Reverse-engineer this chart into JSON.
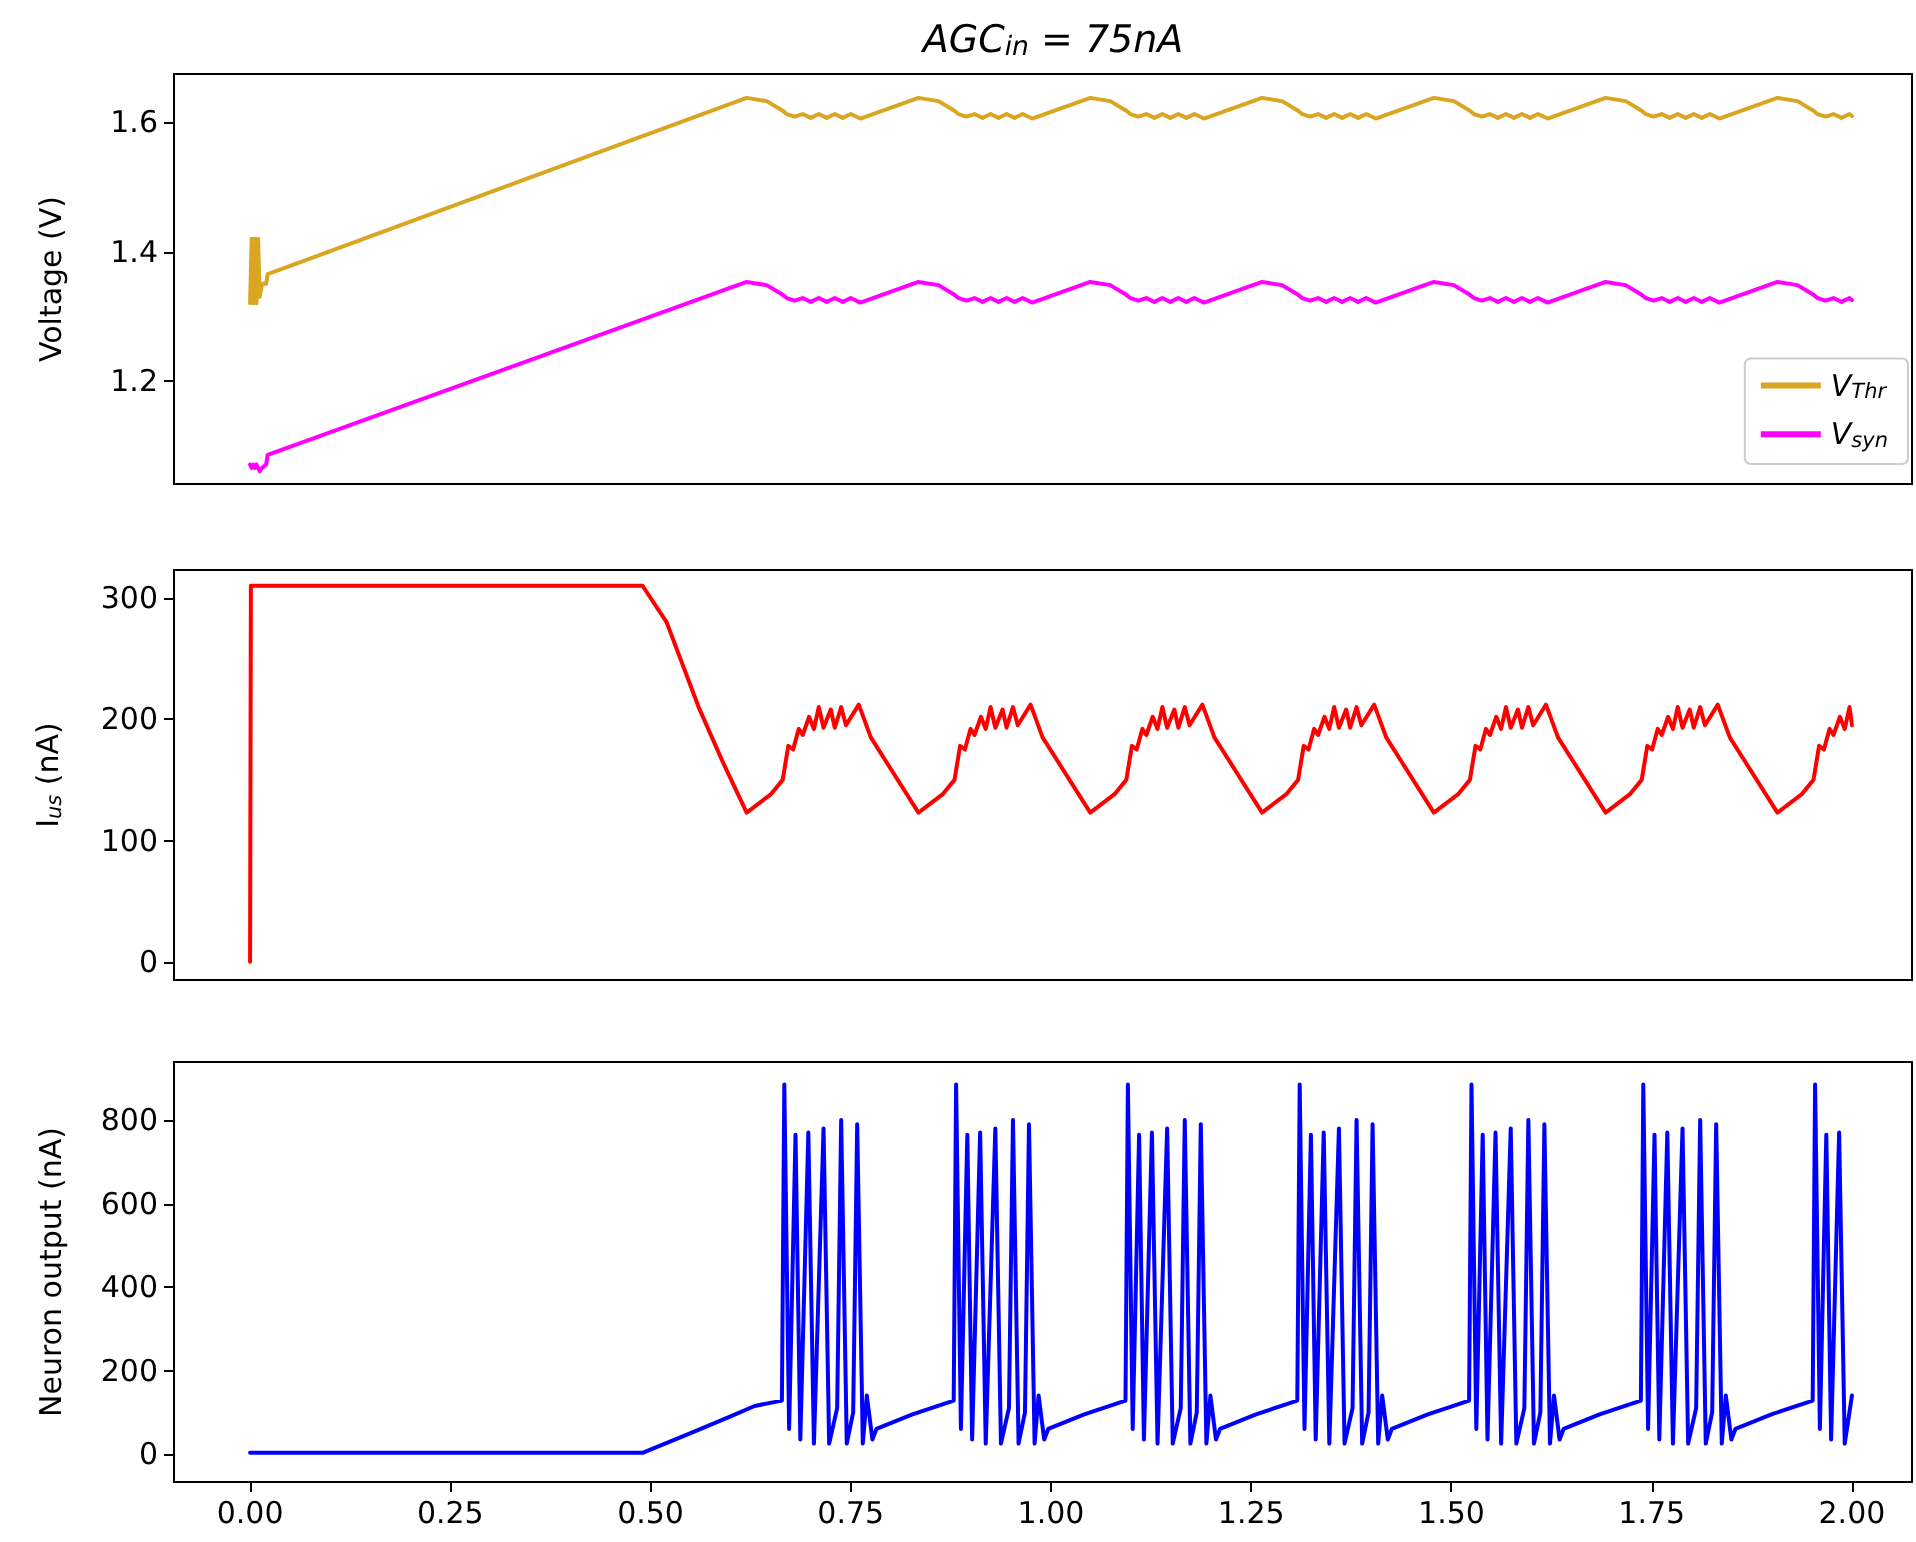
{
  "chart_data": [
    {
      "type": "line",
      "title": "AGC$_{in}$ = 75nA",
      "ylabel": "Voltage (V)",
      "legend": "bottom right",
      "tick_labels": "y",
      "xlim": [
        -0.095,
        2.075
      ],
      "ylim": [
        1.04,
        1.675
      ],
      "yticks": [
        1.2,
        1.4,
        1.6
      ],
      "x": [
        0,
        0.002,
        0.004,
        0.006,
        0.008,
        0.01,
        0.012,
        0.015,
        0.02,
        0.022,
        0.62,
        0.645,
        0.665,
        0.67,
        0.68,
        0.69,
        0.7,
        0.71,
        0.72,
        0.73,
        0.74,
        0.75,
        0.762,
        0.8345,
        0.8595,
        0.8795,
        0.8845,
        0.8945,
        0.9045,
        0.9145,
        0.9245,
        0.9345,
        0.9445,
        0.9545,
        0.9645,
        0.9765,
        1.049,
        1.074,
        1.094,
        1.099,
        1.109,
        1.119,
        1.129,
        1.139,
        1.149,
        1.159,
        1.169,
        1.179,
        1.191,
        1.2635,
        1.2885,
        1.3085,
        1.3135,
        1.3235,
        1.3335,
        1.3435,
        1.3535,
        1.3635,
        1.3735,
        1.3835,
        1.3935,
        1.4055,
        1.478,
        1.503,
        1.523,
        1.528,
        1.538,
        1.548,
        1.558,
        1.568,
        1.578,
        1.588,
        1.598,
        1.608,
        1.62,
        1.6925,
        1.7175,
        1.7375,
        1.7425,
        1.7525,
        1.7625,
        1.7725,
        1.7825,
        1.7925,
        1.8025,
        1.8125,
        1.8225,
        1.8345,
        1.907,
        1.932,
        1.952,
        1.957,
        1.967,
        1.977,
        1.987,
        1.997,
        2.0
      ],
      "series": [
        {
          "name": "V$_{Thr}$",
          "color": "#daa520",
          "values": [
            1.32,
            1.42,
            1.32,
            1.42,
            1.32,
            1.42,
            1.33,
            1.35,
            1.35,
            1.365,
            1.638,
            1.633,
            1.618,
            1.613,
            1.609,
            1.613,
            1.607,
            1.613,
            1.607,
            1.613,
            1.607,
            1.613,
            1.606,
            1.638,
            1.633,
            1.618,
            1.613,
            1.609,
            1.613,
            1.607,
            1.613,
            1.607,
            1.613,
            1.607,
            1.613,
            1.606,
            1.638,
            1.633,
            1.618,
            1.613,
            1.609,
            1.613,
            1.607,
            1.613,
            1.607,
            1.613,
            1.607,
            1.613,
            1.606,
            1.638,
            1.633,
            1.618,
            1.613,
            1.609,
            1.613,
            1.607,
            1.613,
            1.607,
            1.613,
            1.607,
            1.613,
            1.606,
            1.638,
            1.633,
            1.618,
            1.613,
            1.609,
            1.613,
            1.607,
            1.613,
            1.607,
            1.613,
            1.607,
            1.613,
            1.606,
            1.638,
            1.633,
            1.618,
            1.613,
            1.609,
            1.613,
            1.607,
            1.613,
            1.607,
            1.613,
            1.607,
            1.613,
            1.606,
            1.638,
            1.633,
            1.618,
            1.613,
            1.609,
            1.613,
            1.607,
            1.613,
            1.61
          ]
        },
        {
          "name": "V$_{syn}$",
          "color": "#ff00ff",
          "values": [
            1.07,
            1.065,
            1.07,
            1.065,
            1.07,
            1.065,
            1.06,
            1.065,
            1.07,
            1.085,
            1.353,
            1.348,
            1.333,
            1.328,
            1.324,
            1.328,
            1.322,
            1.328,
            1.322,
            1.328,
            1.322,
            1.328,
            1.321,
            1.353,
            1.348,
            1.333,
            1.328,
            1.324,
            1.328,
            1.322,
            1.328,
            1.322,
            1.328,
            1.322,
            1.328,
            1.321,
            1.353,
            1.348,
            1.333,
            1.328,
            1.324,
            1.328,
            1.322,
            1.328,
            1.322,
            1.328,
            1.322,
            1.328,
            1.321,
            1.353,
            1.348,
            1.333,
            1.328,
            1.324,
            1.328,
            1.322,
            1.328,
            1.322,
            1.328,
            1.322,
            1.328,
            1.321,
            1.353,
            1.348,
            1.333,
            1.328,
            1.324,
            1.328,
            1.322,
            1.328,
            1.322,
            1.328,
            1.322,
            1.328,
            1.321,
            1.353,
            1.348,
            1.333,
            1.328,
            1.324,
            1.328,
            1.322,
            1.328,
            1.322,
            1.328,
            1.322,
            1.328,
            1.321,
            1.353,
            1.348,
            1.333,
            1.328,
            1.324,
            1.328,
            1.322,
            1.328,
            1.325
          ]
        }
      ]
    },
    {
      "type": "line",
      "ylabel": "I$_{us}$ (nA)",
      "tick_labels": "y",
      "xlim": [
        -0.095,
        2.075
      ],
      "ylim": [
        -15,
        323
      ],
      "yticks": [
        0,
        100,
        200,
        300
      ],
      "x": [
        0,
        0.001,
        0.49,
        0.52,
        0.56,
        0.59,
        0.62,
        0.65,
        0.665,
        0.672,
        0.678,
        0.685,
        0.69,
        0.698,
        0.704,
        0.71,
        0.716,
        0.725,
        0.73,
        0.738,
        0.744,
        0.76,
        0.775,
        0.8345,
        0.8645,
        0.8795,
        0.8865,
        0.8925,
        0.8995,
        0.9045,
        0.9125,
        0.9185,
        0.9245,
        0.9305,
        0.9395,
        0.9445,
        0.9525,
        0.9585,
        0.9745,
        0.9895,
        1.049,
        1.079,
        1.094,
        1.101,
        1.107,
        1.114,
        1.119,
        1.127,
        1.133,
        1.139,
        1.145,
        1.154,
        1.159,
        1.167,
        1.173,
        1.189,
        1.204,
        1.2635,
        1.2935,
        1.3085,
        1.3155,
        1.3215,
        1.3285,
        1.3335,
        1.3415,
        1.3475,
        1.3535,
        1.3595,
        1.3685,
        1.3735,
        1.3815,
        1.3875,
        1.4035,
        1.4185,
        1.478,
        1.508,
        1.523,
        1.53,
        1.536,
        1.543,
        1.548,
        1.556,
        1.562,
        1.568,
        1.574,
        1.583,
        1.588,
        1.596,
        1.602,
        1.618,
        1.633,
        1.6925,
        1.7225,
        1.7375,
        1.7445,
        1.7505,
        1.7575,
        1.7625,
        1.7705,
        1.7765,
        1.7825,
        1.7885,
        1.7975,
        1.8025,
        1.8105,
        1.8165,
        1.8325,
        1.8475,
        1.907,
        1.937,
        1.952,
        1.959,
        1.965,
        1.972,
        1.977,
        1.985,
        1.991,
        1.997,
        2.0
      ],
      "series": [
        {
          "color": "#ff0000",
          "values": [
            0,
            310,
            310,
            280,
            210,
            165,
            123,
            138,
            150,
            178,
            175,
            192,
            187,
            202,
            192,
            210,
            193,
            208,
            193,
            210,
            195,
            212,
            185,
            123,
            138,
            150,
            178,
            175,
            192,
            187,
            202,
            192,
            210,
            193,
            208,
            193,
            210,
            195,
            212,
            185,
            123,
            138,
            150,
            178,
            175,
            192,
            187,
            202,
            192,
            210,
            193,
            208,
            193,
            210,
            195,
            212,
            185,
            123,
            138,
            150,
            178,
            175,
            192,
            187,
            202,
            192,
            210,
            193,
            208,
            193,
            210,
            195,
            212,
            185,
            123,
            138,
            150,
            178,
            175,
            192,
            187,
            202,
            192,
            210,
            193,
            208,
            193,
            210,
            195,
            212,
            185,
            123,
            138,
            150,
            178,
            175,
            192,
            187,
            202,
            192,
            210,
            193,
            208,
            193,
            210,
            195,
            212,
            185,
            123,
            138,
            150,
            178,
            175,
            192,
            187,
            202,
            192,
            210,
            195
          ]
        }
      ]
    },
    {
      "type": "line",
      "ylabel": "Neuron output (nA)",
      "xlim": [
        -0.095,
        2.075
      ],
      "xticks": [
        {
          "value": 0,
          "label": "0.00"
        },
        {
          "value": 0.25,
          "label": "0.25"
        },
        {
          "value": 0.5,
          "label": "0.50"
        },
        {
          "value": 0.75,
          "label": "0.75"
        },
        {
          "value": 1,
          "label": "1.00"
        },
        {
          "value": 1.25,
          "label": "1.25"
        },
        {
          "value": 1.5,
          "label": "1.50"
        },
        {
          "value": 1.75,
          "label": "1.75"
        },
        {
          "value": 2,
          "label": "2.00"
        }
      ],
      "ylim": [
        -67,
        939
      ],
      "yticks": [
        0,
        200,
        400,
        600,
        800
      ],
      "x": [
        0,
        0.49,
        0.55,
        0.6,
        0.63,
        0.664,
        0.667,
        0.673,
        0.681,
        0.687,
        0.697,
        0.704,
        0.716,
        0.723,
        0.733,
        0.738,
        0.745,
        0.753,
        0.758,
        0.765,
        0.77,
        0.777,
        0.782,
        0.827,
        0.8785,
        0.8815,
        0.8875,
        0.8955,
        0.9015,
        0.9115,
        0.9185,
        0.9305,
        0.9375,
        0.9475,
        0.9525,
        0.9595,
        0.9675,
        0.9725,
        0.9795,
        0.9845,
        0.9915,
        0.9965,
        1.0415,
        1.093,
        1.096,
        1.102,
        1.11,
        1.116,
        1.126,
        1.133,
        1.145,
        1.152,
        1.162,
        1.167,
        1.174,
        1.182,
        1.187,
        1.194,
        1.199,
        1.206,
        1.211,
        1.256,
        1.3075,
        1.3105,
        1.3165,
        1.3245,
        1.3305,
        1.3405,
        1.3475,
        1.3595,
        1.3665,
        1.3765,
        1.3815,
        1.3885,
        1.3965,
        1.4015,
        1.4085,
        1.4135,
        1.4205,
        1.4255,
        1.4705,
        1.522,
        1.525,
        1.531,
        1.539,
        1.545,
        1.555,
        1.562,
        1.574,
        1.581,
        1.591,
        1.596,
        1.603,
        1.611,
        1.616,
        1.623,
        1.628,
        1.635,
        1.64,
        1.685,
        1.7365,
        1.7395,
        1.7455,
        1.7535,
        1.7595,
        1.7695,
        1.7765,
        1.7885,
        1.7955,
        1.8055,
        1.8105,
        1.8175,
        1.8255,
        1.8305,
        1.8375,
        1.8425,
        1.8495,
        1.8545,
        1.8995,
        1.951,
        1.954,
        1.96,
        1.968,
        1.974,
        1.984,
        1.991,
        2.0
      ],
      "series": [
        {
          "color": "#0000ff",
          "values": [
            3,
            3,
            50,
            90,
            115,
            128,
            885,
            60,
            765,
            35,
            770,
            25,
            780,
            25,
            110,
            800,
            25,
            100,
            790,
            25,
            140,
            35,
            60,
            95,
            128,
            885,
            60,
            765,
            35,
            770,
            25,
            780,
            25,
            110,
            800,
            25,
            100,
            790,
            25,
            140,
            35,
            60,
            95,
            128,
            885,
            60,
            765,
            35,
            770,
            25,
            780,
            25,
            110,
            800,
            25,
            100,
            790,
            25,
            140,
            35,
            60,
            95,
            128,
            885,
            60,
            765,
            35,
            770,
            25,
            780,
            25,
            110,
            800,
            25,
            100,
            790,
            25,
            140,
            35,
            60,
            95,
            128,
            885,
            60,
            765,
            35,
            770,
            25,
            780,
            25,
            110,
            800,
            25,
            100,
            790,
            25,
            140,
            35,
            60,
            95,
            128,
            885,
            60,
            765,
            35,
            770,
            25,
            780,
            25,
            110,
            800,
            25,
            100,
            790,
            25,
            140,
            35,
            60,
            95,
            128,
            885,
            60,
            765,
            35,
            770,
            25,
            140
          ]
        }
      ]
    }
  ]
}
